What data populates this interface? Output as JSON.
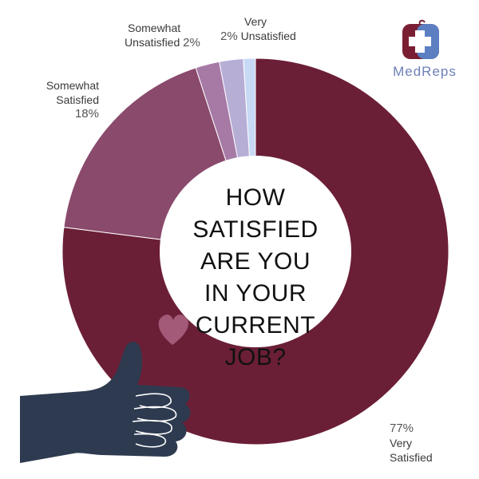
{
  "chart_data": {
    "type": "pie",
    "variant": "donut",
    "title_lines": [
      "HOW SATISFIED",
      "ARE YOU",
      "IN YOUR",
      "CURRENT",
      "JOB?"
    ],
    "slices": [
      {
        "label_lines": [
          "Very",
          "Satisfied"
        ],
        "value": 77,
        "value_text": "77%",
        "color": "#6b1f36"
      },
      {
        "label_lines": [
          "Somewhat",
          "Satisfied"
        ],
        "value": 18,
        "value_text": "18%",
        "color": "#8a4a6c"
      },
      {
        "label_lines": [
          "Somewhat",
          "Unsatisfied"
        ],
        "value": 2,
        "value_text": "2%",
        "color": "#a77aa6"
      },
      {
        "label_lines": [
          "Very",
          "Unsatisfied"
        ],
        "value": 2,
        "value_text": "2%",
        "color": "#b7aed6"
      },
      {
        "label_lines": [],
        "value": 1,
        "value_text": "",
        "color": "#c7d9f5"
      }
    ]
  },
  "brand": {
    "name": "MedReps",
    "primary_color": "#7a1f33",
    "secondary_color": "#5c7fc2"
  },
  "decorations": {
    "icons": [
      "thumbs-up-icon",
      "heart-icon"
    ]
  }
}
